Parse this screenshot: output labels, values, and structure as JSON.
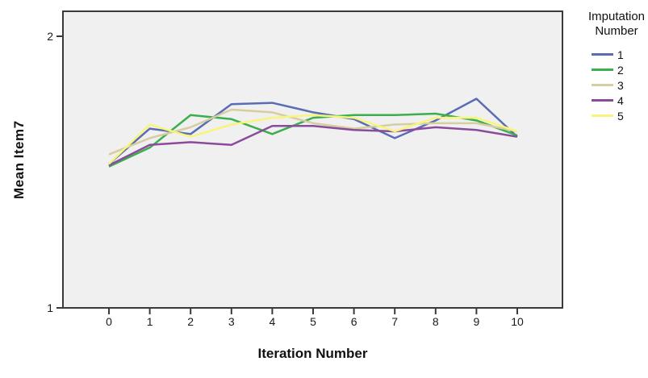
{
  "figure": {
    "bg_color": "#FFFFFF",
    "plot_bg_color": "#F0F0F0",
    "axis_color": "#3A3A3A",
    "text_color": "#111111"
  },
  "legend": {
    "title_lines": [
      "Imputation",
      "Number"
    ]
  },
  "chart_data": {
    "type": "line",
    "title": "",
    "xlabel": "Iteration Number",
    "ylabel": "Mean Item7",
    "x": [
      0,
      1,
      2,
      3,
      4,
      5,
      6,
      7,
      8,
      9,
      10
    ],
    "x_ticks": [
      0,
      1,
      2,
      3,
      4,
      5,
      6,
      7,
      8,
      9,
      10
    ],
    "y_ticks": [
      1,
      2
    ],
    "ylim": [
      1,
      2.09
    ],
    "grid": false,
    "legend_position": "right",
    "series": [
      {
        "name": "1",
        "color": "#5A6CB2",
        "values": [
          1.53,
          1.66,
          1.64,
          1.75,
          1.755,
          1.72,
          1.695,
          1.625,
          1.69,
          1.77,
          1.63
        ]
      },
      {
        "name": "2",
        "color": "#3BAE4D",
        "values": [
          1.52,
          1.59,
          1.71,
          1.695,
          1.64,
          1.7,
          1.71,
          1.71,
          1.715,
          1.69,
          1.635
        ]
      },
      {
        "name": "3",
        "color": "#D6CDA0",
        "values": [
          1.565,
          1.625,
          1.665,
          1.73,
          1.72,
          1.68,
          1.66,
          1.675,
          1.68,
          1.68,
          1.65
        ]
      },
      {
        "name": "4",
        "color": "#8B4B9C",
        "values": [
          1.525,
          1.6,
          1.61,
          1.6,
          1.67,
          1.67,
          1.655,
          1.65,
          1.665,
          1.655,
          1.63
        ]
      },
      {
        "name": "5",
        "color": "#F8F57C",
        "values": [
          1.53,
          1.675,
          1.63,
          1.675,
          1.7,
          1.71,
          1.7,
          1.65,
          1.7,
          1.7,
          1.65
        ]
      }
    ]
  }
}
